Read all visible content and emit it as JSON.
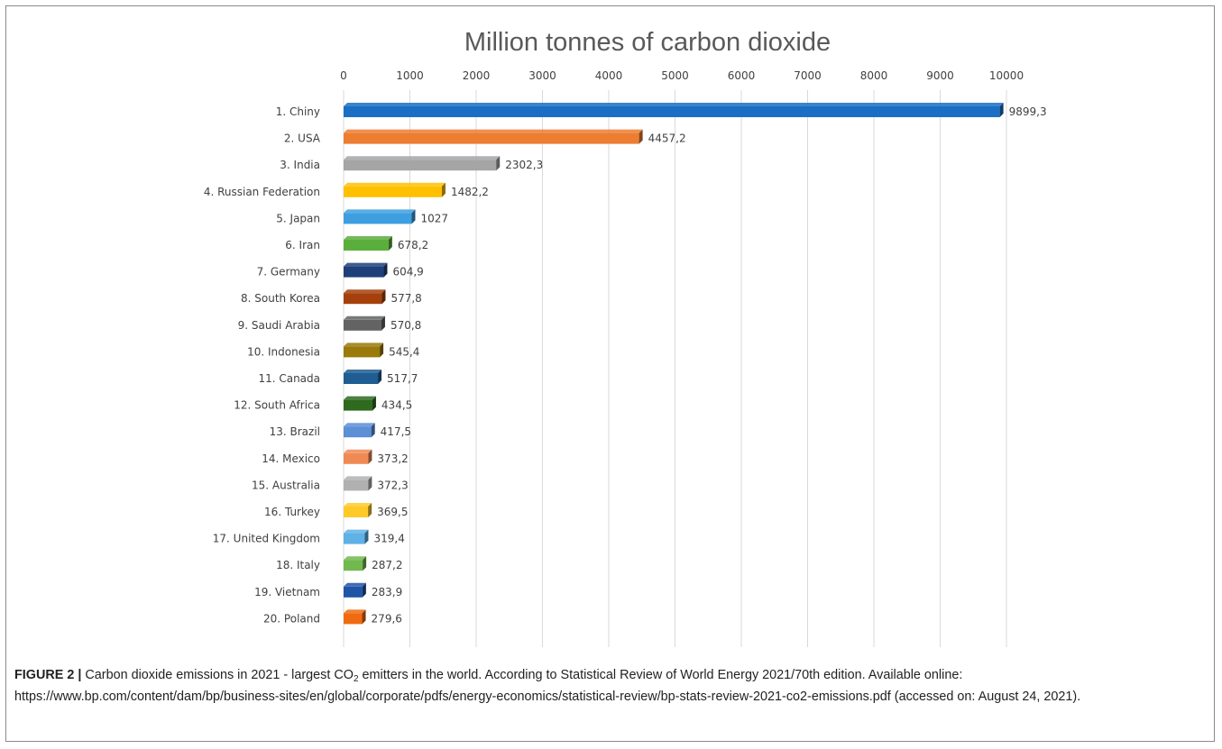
{
  "chart_data": {
    "type": "bar",
    "orientation": "horizontal",
    "title": "Million tonnes of carbon dioxide",
    "xlabel": "",
    "ylabel": "",
    "xlim": [
      0,
      10000
    ],
    "x_ticks": [
      "0",
      "1000",
      "2000",
      "3000",
      "4000",
      "5000",
      "6000",
      "7000",
      "8000",
      "9000",
      "10000"
    ],
    "grid": true,
    "legend": "none",
    "categories": [
      "1. Chiny",
      "2. USA",
      "3. India",
      "4. Russian Federation",
      "5. Japan",
      "6. Iran",
      "7. Germany",
      "8. South Korea",
      "9. Saudi Arabia",
      "10. Indonesia",
      "11. Canada",
      "12. South Africa",
      "13. Brazil",
      "14. Mexico",
      "15. Australia",
      "16. Turkey",
      "17. United Kingdom",
      "18. Italy",
      "19. Vietnam",
      "20. Poland"
    ],
    "values": [
      9899.3,
      4457.2,
      2302.3,
      1482.2,
      1027,
      678.2,
      604.9,
      577.8,
      570.8,
      545.4,
      517.7,
      434.5,
      417.5,
      373.2,
      372.3,
      369.5,
      319.4,
      287.2,
      283.9,
      279.6
    ],
    "value_labels": [
      "9899,3",
      "4457,2",
      "2302,3",
      "1482,2",
      "1027",
      "678,2",
      "604,9",
      "577,8",
      "570,8",
      "545,4",
      "517,7",
      "434,5",
      "417,5",
      "373,2",
      "372,3",
      "369,5",
      "319,4",
      "287,2",
      "283,9",
      "279,6"
    ],
    "colors": [
      "#1a6fc4",
      "#ed7d31",
      "#a5a5a5",
      "#ffc000",
      "#3d9fe0",
      "#5aae3c",
      "#1f3f7a",
      "#a5400c",
      "#636363",
      "#9a7a0a",
      "#1f5d92",
      "#2f6a1f",
      "#5b8fd6",
      "#f08a55",
      "#b0b0b0",
      "#ffca28",
      "#5fb1e6",
      "#71b84e",
      "#1f54a6",
      "#f06a10"
    ]
  },
  "caption": {
    "label": "FIGURE 2 |",
    "text_before_sub": " Carbon dioxide emissions in 2021 - largest CO",
    "subscript": "2",
    "text_after_sub": " emitters in the world. According to Statistical Review of World Energy 2021/70th edition. Available online: https://www.bp.com/content/dam/bp/business-sites/en/global/corporate/pdfs/energy-economics/statistical-review/bp-stats-review-2021-co2-emissions.pdf (accessed on: August 24, 2021)."
  }
}
